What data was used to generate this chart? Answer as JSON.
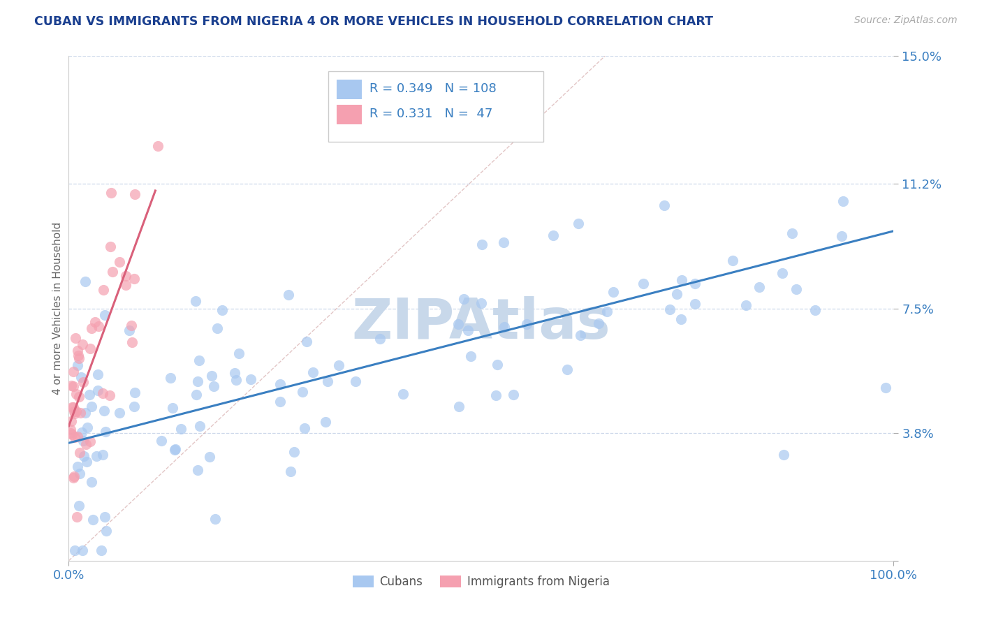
{
  "title": "CUBAN VS IMMIGRANTS FROM NIGERIA 4 OR MORE VEHICLES IN HOUSEHOLD CORRELATION CHART",
  "source_text": "Source: ZipAtlas.com",
  "ylabel": "4 or more Vehicles in Household",
  "xlim": [
    0.0,
    100.0
  ],
  "ylim": [
    0.0,
    15.0
  ],
  "yticks": [
    0.0,
    3.8,
    7.5,
    11.2,
    15.0
  ],
  "ytick_labels": [
    "",
    "3.8%",
    "7.5%",
    "11.2%",
    "15.0%"
  ],
  "xtick_labels": [
    "0.0%",
    "100.0%"
  ],
  "legend_r1": "0.349",
  "legend_n1": "108",
  "legend_r2": "0.331",
  "legend_n2": "47",
  "legend_label1": "Cubans",
  "legend_label2": "Immigrants from Nigeria",
  "dot_color_blue": "#a8c8f0",
  "dot_color_pink": "#f5a0b0",
  "trend_color_blue": "#3a7fc1",
  "trend_color_pink": "#d9607a",
  "ref_line_color": "#d0a0a0",
  "grid_color": "#c8d4e8",
  "title_color": "#1a3f8f",
  "axis_label_color": "#666666",
  "tick_label_color": "#3a7fc1",
  "watermark_color": "#c8d8ea",
  "background_color": "#ffffff",
  "blue_trend_x": [
    0.0,
    100.0
  ],
  "blue_trend_y": [
    3.5,
    9.8
  ],
  "pink_trend_x": [
    0.0,
    10.5
  ],
  "pink_trend_y": [
    4.0,
    11.0
  ],
  "ref_line_x": [
    0,
    65
  ],
  "ref_line_y": [
    0,
    15
  ]
}
